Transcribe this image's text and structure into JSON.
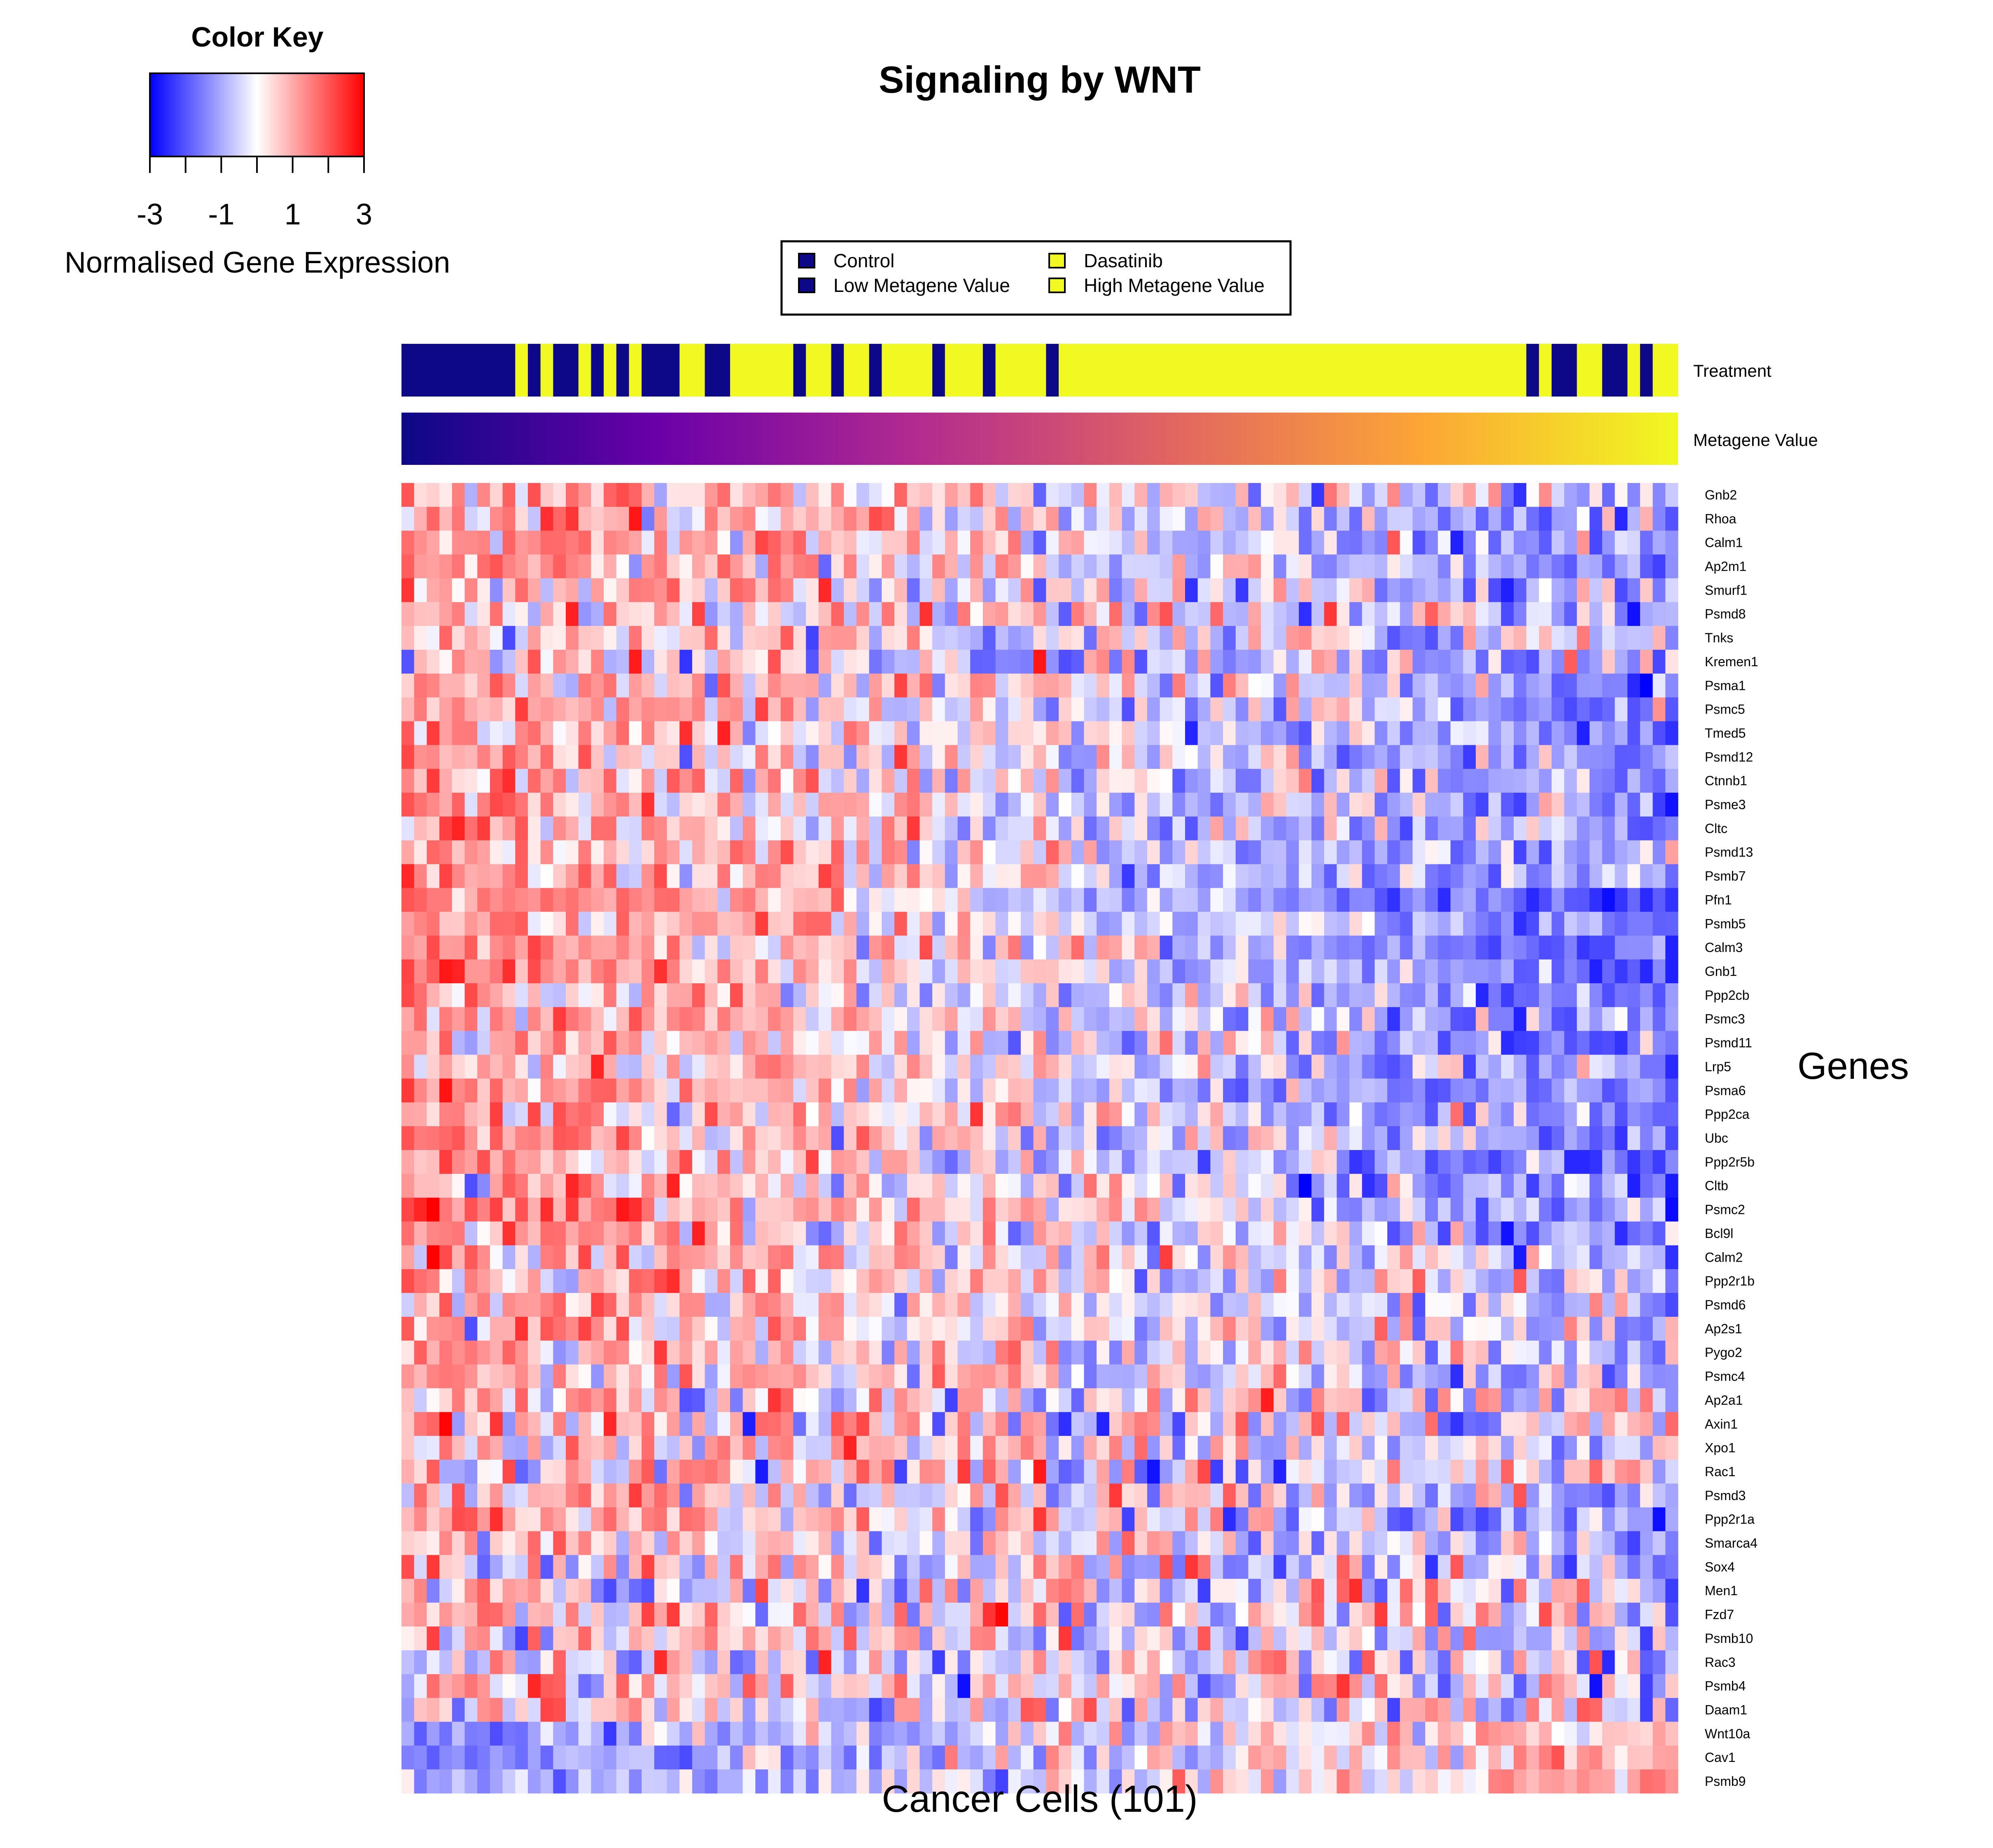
{
  "chart_data": {
    "type": "heatmap",
    "title": "Signaling by WNT",
    "xlabel": "Cancer Cells (101)",
    "ylabel": "Genes",
    "color_key": {
      "title": "Color Key",
      "label": "Normalised Gene Expression",
      "range": [
        -3,
        3
      ],
      "tick_labels": [
        "-3",
        "-1",
        "1",
        "3"
      ],
      "colors": {
        "low": "#0000FF",
        "mid": "#FFFFFF",
        "high": "#FF0000"
      }
    },
    "legend": {
      "placement": "top-center",
      "items": [
        {
          "label": "Control",
          "color": "#0D0887"
        },
        {
          "label": "Low Metagene Value",
          "color": "#0D0887"
        },
        {
          "label": "Dasatinib",
          "color": "#F0F921"
        },
        {
          "label": "High Metagene Value",
          "color": "#F0F921"
        }
      ]
    },
    "annotation_tracks": [
      {
        "name": "Treatment",
        "type": "categorical",
        "colors": {
          "Control": "#0D0887",
          "Dasatinib": "#F0F921"
        },
        "values": [
          "Control",
          "Control",
          "Control",
          "Control",
          "Control",
          "Control",
          "Control",
          "Control",
          "Control",
          "Dasatinib",
          "Control",
          "Dasatinib",
          "Control",
          "Control",
          "Dasatinib",
          "Control",
          "Dasatinib",
          "Control",
          "Dasatinib",
          "Control",
          "Control",
          "Control",
          "Dasatinib",
          "Dasatinib",
          "Control",
          "Control",
          "Dasatinib",
          "Dasatinib",
          "Dasatinib",
          "Dasatinib",
          "Dasatinib",
          "Control",
          "Dasatinib",
          "Dasatinib",
          "Control",
          "Dasatinib",
          "Dasatinib",
          "Control",
          "Dasatinib",
          "Dasatinib",
          "Dasatinib",
          "Dasatinib",
          "Control",
          "Dasatinib",
          "Dasatinib",
          "Dasatinib",
          "Control",
          "Dasatinib",
          "Dasatinib",
          "Dasatinib",
          "Dasatinib",
          "Control",
          "Dasatinib",
          "Dasatinib",
          "Dasatinib",
          "Dasatinib",
          "Dasatinib",
          "Dasatinib",
          "Dasatinib",
          "Dasatinib",
          "Dasatinib",
          "Dasatinib",
          "Dasatinib",
          "Dasatinib",
          "Dasatinib",
          "Dasatinib",
          "Dasatinib",
          "Dasatinib",
          "Dasatinib",
          "Dasatinib",
          "Dasatinib",
          "Dasatinib",
          "Dasatinib",
          "Dasatinib",
          "Dasatinib",
          "Dasatinib",
          "Dasatinib",
          "Dasatinib",
          "Dasatinib",
          "Dasatinib",
          "Dasatinib",
          "Dasatinib",
          "Dasatinib",
          "Dasatinib",
          "Dasatinib",
          "Dasatinib",
          "Dasatinib",
          "Dasatinib",
          "Dasatinib",
          "Control",
          "Dasatinib",
          "Control",
          "Control",
          "Dasatinib",
          "Dasatinib",
          "Control",
          "Control",
          "Dasatinib",
          "Control",
          "Dasatinib",
          "Dasatinib"
        ]
      },
      {
        "name": "Metagene Value",
        "type": "continuous",
        "colors": [
          "#0D0887",
          "#6A00A8",
          "#B12A90",
          "#E16462",
          "#FCA636",
          "#F0F921"
        ]
      }
    ],
    "n_columns": 101,
    "rows": [
      "Gnb2",
      "Rhoa",
      "Calm1",
      "Ap2m1",
      "Smurf1",
      "Psmd8",
      "Tnks",
      "Kremen1",
      "Psma1",
      "Psmc5",
      "Tmed5",
      "Psmd12",
      "Ctnnb1",
      "Psme3",
      "Cltc",
      "Psmd13",
      "Psmb7",
      "Pfn1",
      "Psmb5",
      "Calm3",
      "Gnb1",
      "Ppp2cb",
      "Psmc3",
      "Psmd11",
      "Lrp5",
      "Psma6",
      "Ppp2ca",
      "Ubc",
      "Ppp2r5b",
      "Cltb",
      "Psmc2",
      "Bcl9l",
      "Calm2",
      "Ppp2r1b",
      "Psmd6",
      "Ap2s1",
      "Pygo2",
      "Psmc4",
      "Ap2a1",
      "Axin1",
      "Xpo1",
      "Rac1",
      "Psmd3",
      "Ppp2r1a",
      "Smarca4",
      "Sox4",
      "Men1",
      "Fzd7",
      "Psmb10",
      "Rac3",
      "Psmb4",
      "Daam1",
      "Wnt10a",
      "Cav1",
      "Psmb9"
    ],
    "row_trends": [
      {
        "start": 1.0,
        "end": -0.7,
        "noise": 0.8
      },
      {
        "start": 1.0,
        "end": -1.0,
        "noise": 0.8
      },
      {
        "start": 1.1,
        "end": -1.0,
        "noise": 0.7
      },
      {
        "start": 1.2,
        "end": -1.0,
        "noise": 0.7
      },
      {
        "start": 0.8,
        "end": -0.9,
        "noise": 0.8
      },
      {
        "start": 0.8,
        "end": -0.5,
        "noise": 0.9
      },
      {
        "start": 0.5,
        "end": -0.5,
        "noise": 0.9
      },
      {
        "start": 0.0,
        "end": -0.3,
        "noise": 1.0
      },
      {
        "start": 1.0,
        "end": -1.0,
        "noise": 0.8
      },
      {
        "start": 1.1,
        "end": -1.1,
        "noise": 0.7
      },
      {
        "start": 0.9,
        "end": -1.2,
        "noise": 0.7
      },
      {
        "start": 0.9,
        "end": -1.0,
        "noise": 0.7
      },
      {
        "start": 1.0,
        "end": -1.2,
        "noise": 0.7
      },
      {
        "start": 1.0,
        "end": -1.0,
        "noise": 0.7
      },
      {
        "start": 1.0,
        "end": -1.1,
        "noise": 0.7
      },
      {
        "start": 1.0,
        "end": -1.0,
        "noise": 0.7
      },
      {
        "start": 1.1,
        "end": -1.1,
        "noise": 0.7
      },
      {
        "start": 1.4,
        "end": -2.0,
        "noise": 0.5
      },
      {
        "start": 1.3,
        "end": -1.5,
        "noise": 0.6
      },
      {
        "start": 1.3,
        "end": -1.6,
        "noise": 0.6
      },
      {
        "start": 1.3,
        "end": -1.6,
        "noise": 0.6
      },
      {
        "start": 1.2,
        "end": -1.5,
        "noise": 0.6
      },
      {
        "start": 1.1,
        "end": -1.2,
        "noise": 0.7
      },
      {
        "start": 1.0,
        "end": -1.2,
        "noise": 0.7
      },
      {
        "start": 0.9,
        "end": -1.0,
        "noise": 0.7
      },
      {
        "start": 1.2,
        "end": -1.5,
        "noise": 0.6
      },
      {
        "start": 1.1,
        "end": -1.3,
        "noise": 0.7
      },
      {
        "start": 1.1,
        "end": -1.2,
        "noise": 0.7
      },
      {
        "start": 1.0,
        "end": -1.3,
        "noise": 0.7
      },
      {
        "start": 1.0,
        "end": -0.9,
        "noise": 0.7
      },
      {
        "start": 1.1,
        "end": -1.0,
        "noise": 0.7
      },
      {
        "start": 0.9,
        "end": -0.8,
        "noise": 0.8
      },
      {
        "start": 0.8,
        "end": -0.6,
        "noise": 0.8
      },
      {
        "start": 0.7,
        "end": -0.5,
        "noise": 0.8
      },
      {
        "start": 0.7,
        "end": -0.6,
        "noise": 0.8
      },
      {
        "start": 0.8,
        "end": -0.6,
        "noise": 0.8
      },
      {
        "start": 0.8,
        "end": -0.7,
        "noise": 0.8
      },
      {
        "start": 0.5,
        "end": -0.4,
        "noise": 0.9
      },
      {
        "start": 0.2,
        "end": -0.2,
        "noise": 1.0
      },
      {
        "start": 0.3,
        "end": -0.2,
        "noise": 1.0
      },
      {
        "start": 0.4,
        "end": -0.3,
        "noise": 0.9
      },
      {
        "start": 0.6,
        "end": -0.4,
        "noise": 0.9
      },
      {
        "start": 0.7,
        "end": -0.5,
        "noise": 0.9
      },
      {
        "start": 0.6,
        "end": -0.8,
        "noise": 0.8
      },
      {
        "start": 0.5,
        "end": -0.6,
        "noise": 0.8
      },
      {
        "start": 0.5,
        "end": -0.5,
        "noise": 0.9
      },
      {
        "start": 0.3,
        "end": -0.3,
        "noise": 0.9
      },
      {
        "start": 0.2,
        "end": -0.1,
        "noise": 0.9
      },
      {
        "start": 0.3,
        "end": -0.2,
        "noise": 0.9
      },
      {
        "start": 0.2,
        "end": 0.0,
        "noise": 0.9
      },
      {
        "start": 0.3,
        "end": 0.1,
        "noise": 0.9
      },
      {
        "start": 0.0,
        "end": 0.0,
        "noise": 0.9
      },
      {
        "start": -1.2,
        "end": 0.6,
        "noise": 0.6
      },
      {
        "start": -1.1,
        "end": 0.7,
        "noise": 0.6
      },
      {
        "start": -1.1,
        "end": 0.7,
        "noise": 0.6
      }
    ]
  }
}
